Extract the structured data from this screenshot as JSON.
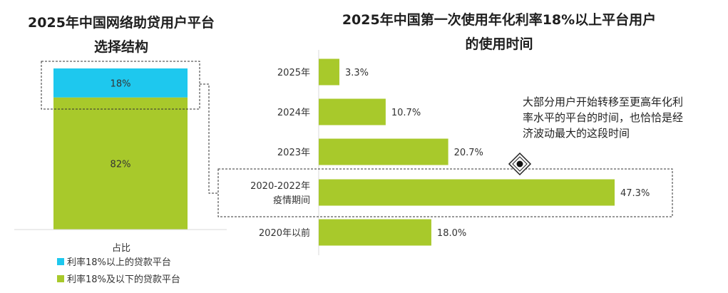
{
  "left_chart": {
    "title_line1": "2025年中国网络助贷用户平台",
    "title_line2": "选择结构",
    "x_label": "占比",
    "chart_data": {
      "type": "bar",
      "stacked": true,
      "categories": [
        "占比"
      ],
      "series": [
        {
          "name": "利率18%及以下的贷款平台",
          "values": [
            82
          ],
          "label": "82%",
          "color": "#a8c92b"
        },
        {
          "name": "利率18%以上的贷款平台",
          "values": [
            18
          ],
          "label": "18%",
          "color": "#1ec8ee"
        }
      ],
      "ylim": [
        0,
        100
      ]
    },
    "legend": [
      {
        "label": "利率18%以上的贷款平台",
        "color": "#1ec8ee"
      },
      {
        "label": "利率18%及以下的贷款平台",
        "color": "#a8c92b"
      }
    ]
  },
  "right_chart": {
    "title_line1": "2025年中国第一次使用年化利率18%以上平台用户",
    "title_line2": "的使用时间",
    "annotation": [
      "大部分用户开始转移至更高年化利",
      "率水平的平台的时间，也恰恰是经",
      "济波动最大的这段时间"
    ],
    "chart_data": {
      "type": "bar",
      "orientation": "horizontal",
      "categories": [
        "2025年",
        "2024年",
        "2023年",
        "2020-2022年疫情期间",
        "2020年以前"
      ],
      "category_lines": [
        [
          "2025年"
        ],
        [
          "2024年"
        ],
        [
          "2023年"
        ],
        [
          "2020-2022年",
          "疫情期间"
        ],
        [
          "2020年以前"
        ]
      ],
      "values": [
        3.3,
        10.7,
        20.7,
        47.3,
        18.0
      ],
      "value_labels": [
        "3.3%",
        "10.7%",
        "20.7%",
        "47.3%",
        "18.0%"
      ],
      "xlim": [
        0,
        50
      ],
      "color": "#a8c92b"
    }
  }
}
